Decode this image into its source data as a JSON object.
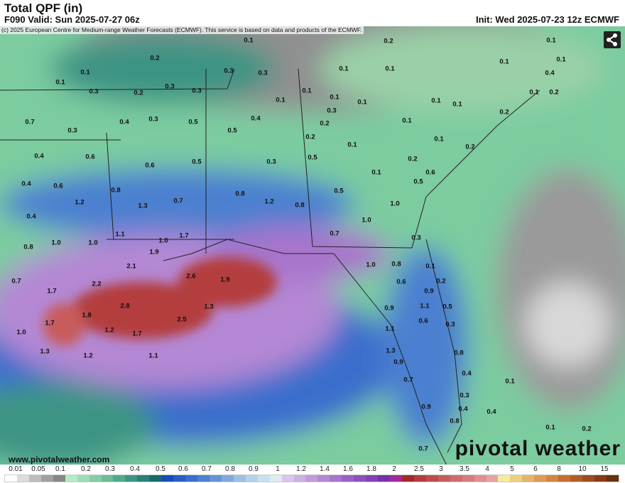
{
  "header": {
    "title": "Total QPF (in)",
    "valid": "F090 Valid: Sun 2025-07-27 06z",
    "init": "Init: Wed 2025-07-23 12z ECMWF"
  },
  "copyright": "(c) 2025 European Centre for Medium-range Weather Forecasts (ECMWF). This service is based on data and products of the ECMWF.",
  "footer": {
    "site": "www.pivotalweather.com",
    "logo": "pivotal weather"
  },
  "share_icon": "share-icon",
  "legend": {
    "labels": [
      "0.01",
      "0.05",
      "0.1",
      "0.2",
      "0.3",
      "0.4",
      "0.5",
      "0.6",
      "0.7",
      "0.8",
      "0.9",
      "1",
      "1.2",
      "1.4",
      "1.6",
      "1.8",
      "2",
      "2.5",
      "3",
      "3.5",
      "4",
      "5",
      "6",
      "8",
      "10",
      "15"
    ],
    "colors": [
      "#ffffff",
      "#dcdcdc",
      "#bdbdbd",
      "#a0a0a0",
      "#878787",
      "#b4ecc4",
      "#9edcb4",
      "#86cca4",
      "#6cbc98",
      "#54a88c",
      "#3e9484",
      "#2c8078",
      "#1c6a6c",
      "#1a4ab8",
      "#2a5cc4",
      "#3a6ecc",
      "#4c80d0",
      "#6494d4",
      "#80aadc",
      "#9cc0e2",
      "#b4d2ea",
      "#c8e0ee",
      "#dcecf2",
      "#d8c4ec",
      "#ccb0e4",
      "#c09cdc",
      "#b488d4",
      "#a874cc",
      "#9c60c4",
      "#9050bc",
      "#8440b4",
      "#7830aa",
      "#9c2c9c",
      "#a02a2a",
      "#b43c3c",
      "#be4c4c",
      "#c85c5c",
      "#d06c6c",
      "#d87c7c",
      "#de9090",
      "#e4a4a4",
      "#f4ec9c",
      "#ecd080",
      "#e4b468",
      "#dc9c54",
      "#d48440",
      "#c86c30",
      "#b45c28",
      "#9c4c20",
      "#843c18",
      "#6c3010"
    ]
  },
  "map_labels": [
    "0.1",
    "0.2",
    "0.1",
    "0.2",
    "0.1",
    "0.1",
    "0.3",
    "0.3",
    "0.1",
    "0.1",
    "0.1",
    "0.4",
    "0.1",
    "0.3",
    "0.2",
    "0.3",
    "0.3",
    "0.1",
    "0.1",
    "0.1",
    "0.1",
    "0.1",
    "0.1",
    "0.2",
    "0.1",
    "0.3",
    "0.2",
    "0.7",
    "0.3",
    "0.5",
    "0.4",
    "0.2",
    "0.1",
    "0.3",
    "0.4",
    "0.5",
    "0.2",
    "0.1",
    "0.1",
    "0.2",
    "0.4",
    "0.6",
    "0.6",
    "0.5",
    "0.3",
    "0.5",
    "0.2",
    "0.1",
    "0.6",
    "0.4",
    "0.6",
    "0.8",
    "0.8",
    "0.5",
    "0.5",
    "1.2",
    "1.3",
    "0.7",
    "1.2",
    "0.8",
    "1.0",
    "0.4",
    "1.1",
    "1.0",
    "0.7",
    "1.7",
    "0.3",
    "1.0",
    "0.8",
    "1.0",
    "1.0",
    "1.9",
    "2.1",
    "2.6",
    "1.9",
    "1.0",
    "0.8",
    "0.1",
    "0.7",
    "2.2",
    "1.7",
    "0.6",
    "0.9",
    "0.2",
    "1.3",
    "2.8",
    "1.1",
    "0.5",
    "0.9",
    "1.7",
    "1.8",
    "2.5",
    "0.6",
    "0.3",
    "1.2",
    "1.7",
    "1.0",
    "1.1",
    "1.3",
    "1.2",
    "1.1",
    "1.3",
    "0.8",
    "0.9",
    "0.4",
    "0.7",
    "0.1",
    "0.3",
    "0.9",
    "0.4",
    "0.4",
    "0.8",
    "0.1",
    "0.2",
    "0.7"
  ]
}
